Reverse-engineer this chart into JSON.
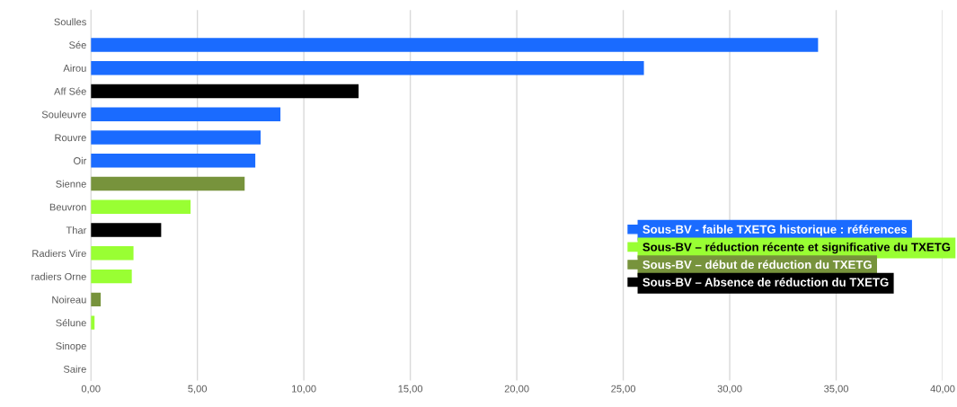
{
  "chart_data": {
    "type": "bar",
    "orientation": "horizontal",
    "categories": [
      "Soulles",
      "Sée",
      "Airou",
      "Aff Sée",
      "Souleuvre",
      "Rouvre",
      "Oir",
      "Sienne",
      "Beuvron",
      "Thar",
      "Radiers Vire",
      "radiers Orne",
      "Noireau",
      "Sélune",
      "Sinope",
      "Saire"
    ],
    "series": [
      {
        "name": "Sous-BV - faible TXETG historique : références",
        "color": "#1a6bff",
        "values": [
          0,
          34.15,
          25.97,
          null,
          8.9,
          7.97,
          7.72,
          null,
          null,
          null,
          null,
          null,
          null,
          null,
          0,
          0
        ]
      },
      {
        "name": "Sous-BV – réduction récente et significative du TXETG",
        "color": "#99ff33",
        "values": [
          null,
          null,
          null,
          null,
          null,
          null,
          null,
          null,
          4.68,
          null,
          2.0,
          1.92,
          null,
          0.17,
          null,
          null
        ]
      },
      {
        "name": "Sous-BV – début de réduction du TXETG",
        "color": "#77933c",
        "values": [
          null,
          null,
          null,
          null,
          null,
          null,
          null,
          7.22,
          null,
          null,
          null,
          null,
          0.46,
          null,
          null,
          null
        ]
      },
      {
        "name": "Sous-BV – Absence de réduction du TXETG",
        "color": "#000000",
        "values": [
          null,
          null,
          null,
          12.57,
          null,
          null,
          null,
          null,
          null,
          3.3,
          null,
          null,
          null,
          null,
          null,
          null
        ]
      }
    ],
    "xlim": [
      0,
      40
    ],
    "xticks": [
      {
        "value": 0,
        "label": "0,00"
      },
      {
        "value": 5,
        "label": "5,00"
      },
      {
        "value": 10,
        "label": "10,00"
      },
      {
        "value": 15,
        "label": "15,00"
      },
      {
        "value": 20,
        "label": "20,00"
      },
      {
        "value": 25,
        "label": "25,00"
      },
      {
        "value": 30,
        "label": "30,00"
      },
      {
        "value": 35,
        "label": "35,00"
      },
      {
        "value": 40,
        "label": "40,00"
      }
    ],
    "grid": "x",
    "legend": "bottom right"
  }
}
